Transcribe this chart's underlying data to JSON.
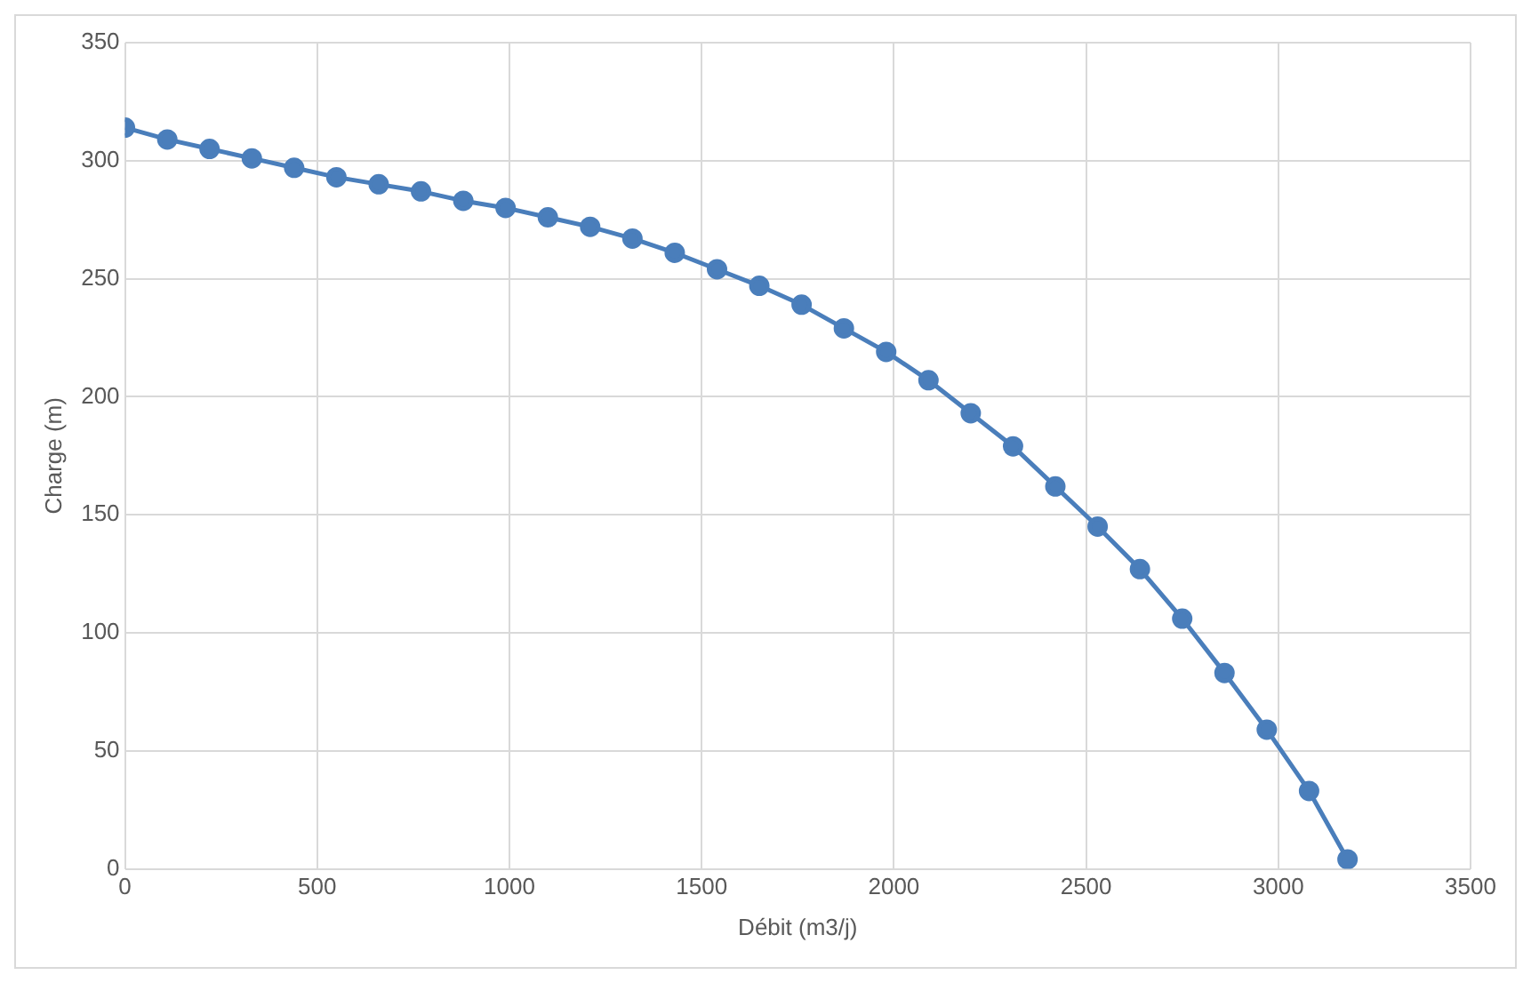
{
  "chart_data": {
    "type": "line",
    "xlabel": "Débit (m3/j)",
    "ylabel": "Charge (m)",
    "x": [
      0,
      110,
      220,
      330,
      440,
      550,
      660,
      770,
      880,
      990,
      1100,
      1210,
      1320,
      1430,
      1540,
      1650,
      1760,
      1870,
      1980,
      2090,
      2200,
      2310,
      2420,
      2530,
      2640,
      2750,
      2860,
      2970,
      3080,
      3180
    ],
    "series": [
      {
        "color": "#4a7ebb",
        "values": [
          314,
          309,
          305,
          301,
          297,
          293,
          290,
          287,
          283,
          280,
          276,
          272,
          267,
          261,
          254,
          247,
          239,
          229,
          219,
          207,
          193,
          179,
          162,
          145,
          127,
          106,
          83,
          59,
          33,
          4
        ]
      }
    ],
    "xlim": [
      0,
      3500
    ],
    "xticks": [
      0,
      500,
      1000,
      1500,
      2000,
      2500,
      3000,
      3500
    ],
    "ylim": [
      0,
      350
    ],
    "yticks": [
      0,
      50,
      100,
      150,
      200,
      250,
      300,
      350
    ],
    "grid": true,
    "legend": false,
    "marker": "circle",
    "line_style": "solid"
  }
}
